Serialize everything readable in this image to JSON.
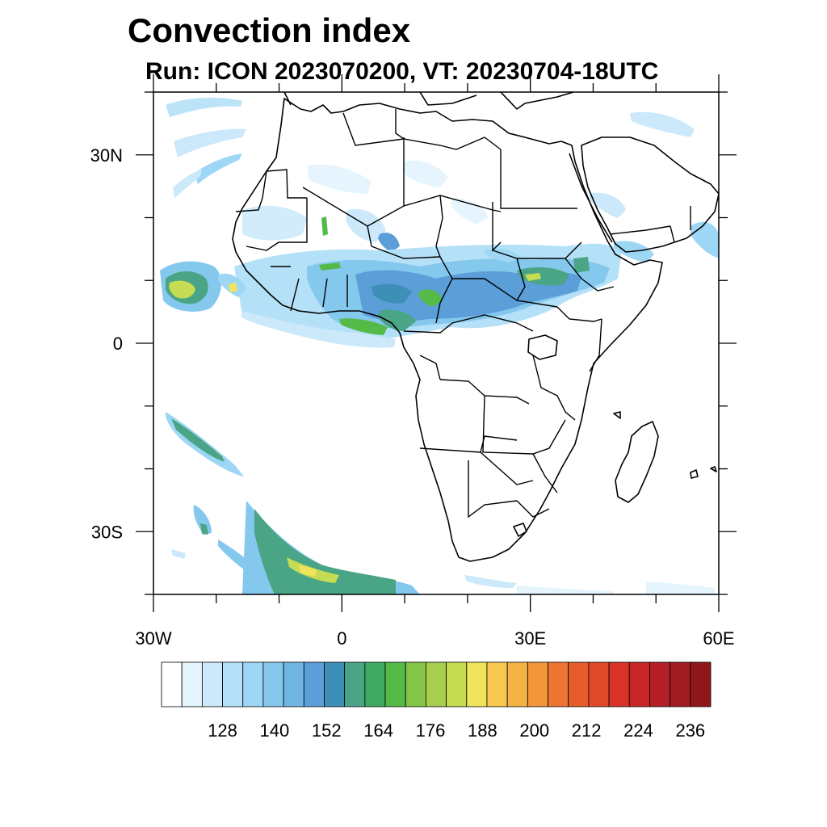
{
  "title": "Convection index",
  "subtitle": "Run: ICON 2023070200,  VT: 20230704-18UTC",
  "lat_ticks": [
    {
      "label": "30N",
      "lat": 30
    },
    {
      "label": "0",
      "lat": 0
    },
    {
      "label": "30S",
      "lat": -30
    }
  ],
  "lon_ticks": [
    {
      "label": "30W",
      "lon": -30
    },
    {
      "label": "0",
      "lon": 0
    },
    {
      "label": "30E",
      "lon": 30
    },
    {
      "label": "60E",
      "lon": 60
    }
  ],
  "map_extent": {
    "lon_min": -30,
    "lon_max": 60,
    "lat_min": -40,
    "lat_max": 40
  },
  "colorbar": {
    "labels": [
      "128",
      "140",
      "152",
      "164",
      "176",
      "188",
      "200",
      "212",
      "224",
      "236"
    ],
    "colors": [
      "#ffffff",
      "#e6f5fd",
      "#cbe9fa",
      "#b5e1f8",
      "#9ed7f5",
      "#85c8ee",
      "#70b6e5",
      "#5b9ed8",
      "#3d8fb8",
      "#4aa587",
      "#3eaa64",
      "#54ba48",
      "#84c446",
      "#a6cf4e",
      "#c6dc52",
      "#efe55a",
      "#f8c94e",
      "#f5b245",
      "#f5953a",
      "#ee7531",
      "#e85b2b",
      "#e04a2a",
      "#d93328",
      "#c92628",
      "#b41f26",
      "#a11b22",
      "#8f171b"
    ]
  }
}
